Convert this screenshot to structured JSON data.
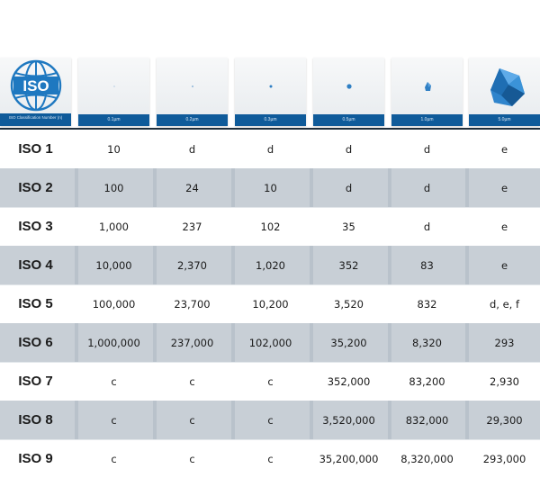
{
  "header": {
    "logo_text": "ISO",
    "logo_caption": "ISO Classification Number (n)",
    "particle_sizes": [
      "0.1µm",
      "0.2µm",
      "0.3µm",
      "0.5µm",
      "1.0µm",
      "5.0µm"
    ]
  },
  "colors": {
    "accent": "#0f5b9a",
    "particle": "#2f7fc4",
    "row_shade": "#c8cfd6",
    "table_border": "#1f2e3b"
  },
  "rows": [
    {
      "class": "ISO 1",
      "values": [
        "10",
        "d",
        "d",
        "d",
        "d",
        "e"
      ]
    },
    {
      "class": "ISO 2",
      "values": [
        "100",
        "24",
        "10",
        "d",
        "d",
        "e"
      ]
    },
    {
      "class": "ISO 3",
      "values": [
        "1,000",
        "237",
        "102",
        "35",
        "d",
        "e"
      ]
    },
    {
      "class": "ISO 4",
      "values": [
        "10,000",
        "2,370",
        "1,020",
        "352",
        "83",
        "e"
      ]
    },
    {
      "class": "ISO 5",
      "values": [
        "100,000",
        "23,700",
        "10,200",
        "3,520",
        "832",
        "d, e, f"
      ]
    },
    {
      "class": "ISO 6",
      "values": [
        "1,000,000",
        "237,000",
        "102,000",
        "35,200",
        "8,320",
        "293"
      ]
    },
    {
      "class": "ISO 7",
      "values": [
        "c",
        "c",
        "c",
        "352,000",
        "83,200",
        "2,930"
      ]
    },
    {
      "class": "ISO 8",
      "values": [
        "c",
        "c",
        "c",
        "3,520,000",
        "832,000",
        "29,300"
      ]
    },
    {
      "class": "ISO 9",
      "values": [
        "c",
        "c",
        "c",
        "35,200,000",
        "8,320,000",
        "293,000"
      ]
    }
  ]
}
